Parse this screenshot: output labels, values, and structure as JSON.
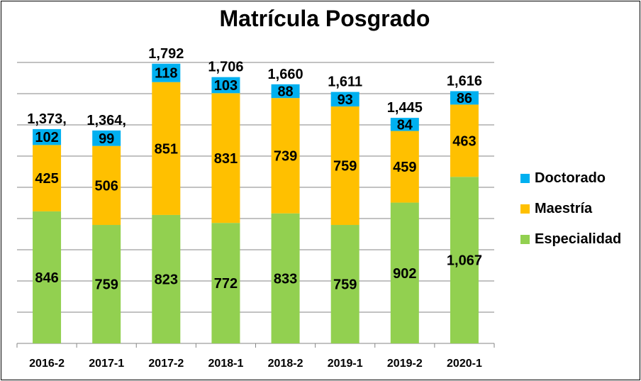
{
  "chart_data": {
    "type": "bar",
    "stacked": true,
    "title": "Matrícula Posgrado",
    "xlabel": "",
    "ylabel": "",
    "categories": [
      "2016-2",
      "2017-1",
      "2017-2",
      "2018-1",
      "2018-2",
      "2019-1",
      "2019-2",
      "2020-1"
    ],
    "series": [
      {
        "name": "Especialidad",
        "color": "#92D050",
        "values": [
          846,
          759,
          823,
          772,
          833,
          759,
          902,
          1067
        ]
      },
      {
        "name": "Maestría",
        "color": "#FFC000",
        "values": [
          425,
          506,
          851,
          831,
          739,
          759,
          459,
          463
        ]
      },
      {
        "name": "Doctorado",
        "color": "#00B0F0",
        "values": [
          102,
          99,
          118,
          103,
          88,
          93,
          84,
          86
        ]
      }
    ],
    "totals": [
      "1,373,",
      "1,364,",
      "1,792",
      "1,706",
      "1,660",
      "1,611",
      "1,445",
      "1,616"
    ],
    "segment_labels": [
      [
        "846",
        "759",
        "823",
        "772",
        "833",
        "759",
        "902",
        "1,067"
      ],
      [
        "425",
        "506",
        "851",
        "831",
        "739",
        "759",
        "459",
        "463"
      ],
      [
        "102",
        "99",
        "118",
        "103",
        "88",
        "93",
        "84",
        "86"
      ]
    ],
    "ylim": [
      0,
      1800
    ],
    "gridlines": true,
    "legend_position": "right"
  }
}
